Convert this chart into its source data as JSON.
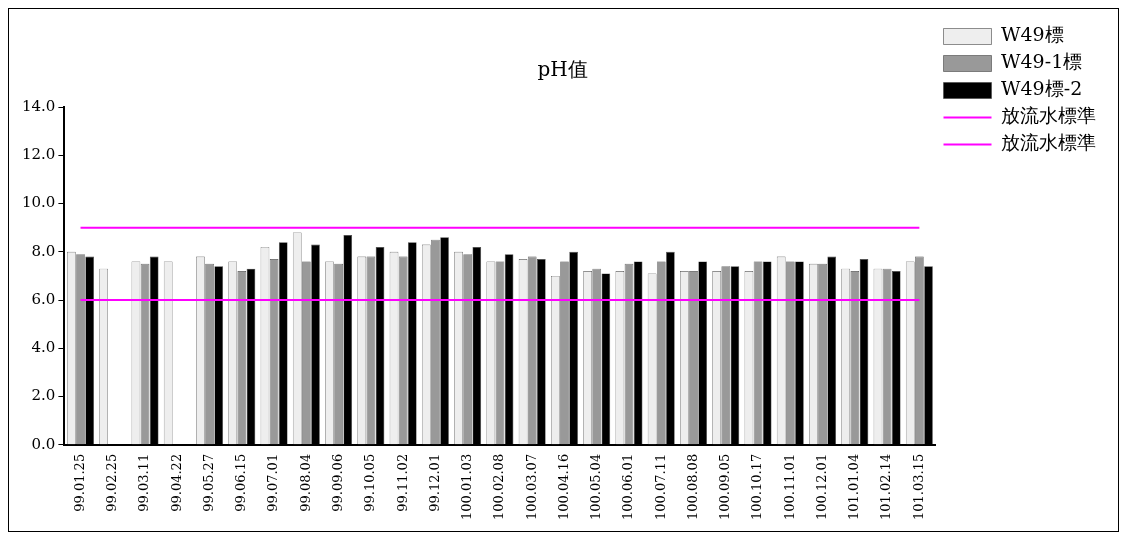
{
  "chart_data": {
    "type": "bar",
    "title": "pH值",
    "categories": [
      "99.01.25",
      "99.02.25",
      "99.03.11",
      "99.04.22",
      "99.05.27",
      "99.06.15",
      "99.07.01",
      "99.08.04",
      "99.09.06",
      "99.10.05",
      "99.11.02",
      "99.12.01",
      "100.01.03",
      "100.02.08",
      "100.03.07",
      "100.04.16",
      "100.05.04",
      "100.06.01",
      "100.07.11",
      "100.08.08",
      "100.09.05",
      "100.10.17",
      "100.11.01",
      "100.12.01",
      "101.01.04",
      "101.02.14",
      "101.03.15"
    ],
    "series": [
      {
        "name": "W49標",
        "color": "#eeeeee",
        "values": [
          8.0,
          7.3,
          7.6,
          7.6,
          7.8,
          7.6,
          8.2,
          8.8,
          7.6,
          7.8,
          8.0,
          8.3,
          8.0,
          7.6,
          7.7,
          7.0,
          7.2,
          7.2,
          7.1,
          7.2,
          7.2,
          7.2,
          7.8,
          7.5,
          7.3,
          7.3,
          7.6
        ]
      },
      {
        "name": "W49-1標",
        "color": "#999999",
        "values": [
          7.9,
          null,
          7.5,
          null,
          7.5,
          7.2,
          7.7,
          7.6,
          7.5,
          7.8,
          7.8,
          8.5,
          7.9,
          7.6,
          7.8,
          7.6,
          7.3,
          7.5,
          7.6,
          7.2,
          7.4,
          7.6,
          7.6,
          7.5,
          7.2,
          7.3,
          7.8
        ]
      },
      {
        "name": "W49標-2",
        "color": "#000000",
        "values": [
          7.8,
          null,
          7.8,
          null,
          7.4,
          7.3,
          8.4,
          8.3,
          8.7,
          8.2,
          8.4,
          8.6,
          8.2,
          7.9,
          7.7,
          8.0,
          7.1,
          7.6,
          8.0,
          7.6,
          7.4,
          7.6,
          7.6,
          7.8,
          7.7,
          7.2,
          7.4
        ]
      },
      {
        "name": "放流水標準",
        "type": "line",
        "color": "#ff00ff",
        "values": [
          9,
          9,
          9,
          9,
          9,
          9,
          9,
          9,
          9,
          9,
          9,
          9,
          9,
          9,
          9,
          9,
          9,
          9,
          9,
          9,
          9,
          9,
          9,
          9,
          9,
          9,
          9
        ]
      },
      {
        "name": "放流水標準",
        "type": "line",
        "color": "#ff00ff",
        "values": [
          6,
          6,
          6,
          6,
          6,
          6,
          6,
          6,
          6,
          6,
          6,
          6,
          6,
          6,
          6,
          6,
          6,
          6,
          6,
          6,
          6,
          6,
          6,
          6,
          6,
          6,
          6
        ]
      }
    ],
    "ylim": [
      0,
      14
    ],
    "yticks": [
      {
        "value": 0,
        "label": "0.0"
      },
      {
        "value": 2,
        "label": "2.0"
      },
      {
        "value": 4,
        "label": "4.0"
      },
      {
        "value": 6,
        "label": "6.0"
      },
      {
        "value": 8,
        "label": "8.0"
      },
      {
        "value": 10,
        "label": "10.0"
      },
      {
        "value": 12,
        "label": "12.0"
      },
      {
        "value": 14,
        "label": "14.0"
      }
    ],
    "grid": false,
    "legend": "top right",
    "marker": "none",
    "line_style": "solid"
  }
}
